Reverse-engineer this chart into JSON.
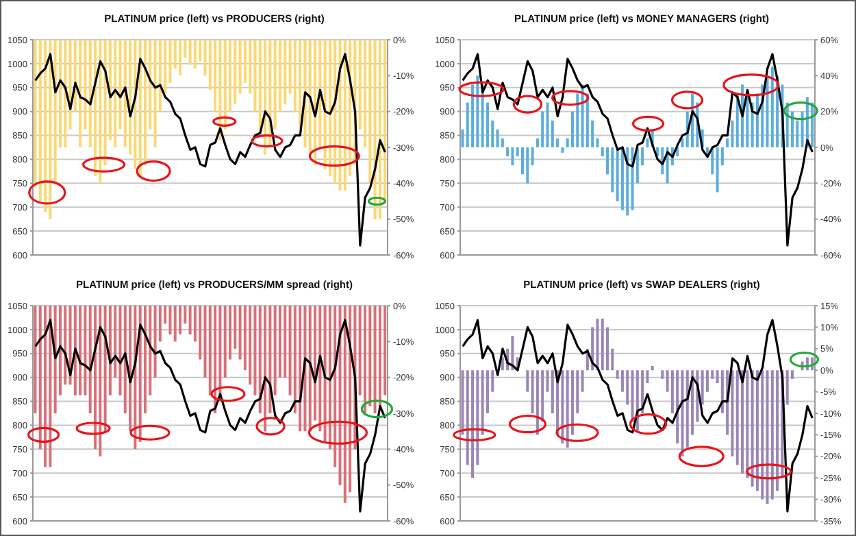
{
  "chart_data": [
    {
      "type": "bar",
      "title": "PLATINUM price (left) vs PRODUCERS (right)",
      "grid": "y",
      "categories": [
        null,
        null,
        null,
        null,
        null,
        null,
        null,
        null,
        null,
        null,
        null,
        null,
        null,
        null,
        null,
        null,
        null,
        null,
        null,
        null,
        null,
        null,
        null,
        null,
        null,
        null,
        null,
        null,
        null,
        null,
        null,
        null,
        null,
        null,
        null,
        null,
        null,
        null,
        null,
        null,
        null,
        null,
        null,
        null,
        null,
        null,
        null,
        null,
        null,
        null,
        null,
        null,
        null,
        null,
        null,
        null,
        null,
        null,
        null,
        null,
        null,
        null,
        null,
        null,
        null,
        null,
        null,
        null,
        null,
        null,
        null
      ],
      "ylim": [
        600,
        1050
      ],
      "yticks": [
        600,
        650,
        700,
        750,
        800,
        850,
        900,
        950,
        1000,
        1050
      ],
      "y2lim": [
        -60,
        0
      ],
      "y2ticks": [
        {
          "value": -60,
          "label": "-60%"
        },
        {
          "value": -50,
          "label": "-50%"
        },
        {
          "value": -40,
          "label": "-40%"
        },
        {
          "value": -30,
          "label": "-30%"
        },
        {
          "value": -20,
          "label": "-20%"
        },
        {
          "value": -10,
          "label": "-10%"
        },
        {
          "value": 0,
          "label": "0%"
        }
      ],
      "series": [
        {
          "axis": "y2",
          "color": "#fad874",
          "values": [
            -40,
            -45,
            -48,
            -50,
            -40,
            -30,
            -30,
            -25,
            -20,
            -30,
            -25,
            -30,
            -38,
            -40,
            -35,
            -28,
            -30,
            -25,
            -30,
            -32,
            -36,
            -38,
            -35,
            -25,
            -30,
            -20,
            -15,
            -12,
            -8,
            -10,
            -5,
            -7,
            -8,
            -6,
            -10,
            -14,
            -20,
            -28,
            -25,
            -20,
            -18,
            -15,
            -12,
            -15,
            -20,
            -25,
            -32,
            -30,
            -25,
            -20,
            -18,
            -15,
            -20,
            -25,
            -30,
            -32,
            -35,
            -30,
            -36,
            -38,
            -40,
            -42,
            -42,
            -38,
            -35,
            -25,
            -30,
            -40,
            -50,
            -50,
            -45
          ]
        },
        {
          "type": "line",
          "color": "#000000",
          "values": [
            965,
            980,
            990,
            1020,
            940,
            965,
            950,
            905,
            960,
            930,
            925,
            915,
            960,
            1005,
            985,
            930,
            945,
            930,
            950,
            890,
            930,
            1010,
            990,
            965,
            950,
            955,
            930,
            920,
            895,
            885,
            850,
            820,
            825,
            790,
            785,
            830,
            835,
            865,
            830,
            800,
            790,
            815,
            805,
            830,
            850,
            855,
            900,
            885,
            820,
            805,
            825,
            830,
            850,
            850,
            940,
            930,
            890,
            945,
            900,
            895,
            920,
            990,
            1020,
            965,
            900,
            620,
            720,
            740,
            780,
            840,
            815
          ]
        }
      ]
    },
    {
      "type": "bar",
      "title": "PLATINUM price (left) vs MONEY MANAGERS (right)",
      "grid": "y",
      "categories": [
        null,
        null,
        null,
        null,
        null,
        null,
        null,
        null,
        null,
        null,
        null,
        null,
        null,
        null,
        null,
        null,
        null,
        null,
        null,
        null,
        null,
        null,
        null,
        null,
        null,
        null,
        null,
        null,
        null,
        null,
        null,
        null,
        null,
        null,
        null,
        null,
        null,
        null,
        null,
        null,
        null,
        null,
        null,
        null,
        null,
        null,
        null,
        null,
        null,
        null,
        null,
        null,
        null,
        null,
        null,
        null,
        null,
        null,
        null,
        null,
        null,
        null,
        null,
        null,
        null,
        null,
        null,
        null,
        null,
        null,
        null
      ],
      "ylim": [
        600,
        1050
      ],
      "yticks": [
        600,
        650,
        700,
        750,
        800,
        850,
        900,
        950,
        1000,
        1050
      ],
      "y2lim": [
        -60,
        60
      ],
      "y2ticks": [
        {
          "value": -60,
          "label": "-60%"
        },
        {
          "value": -40,
          "label": "-40%"
        },
        {
          "value": -20,
          "label": "-20%"
        },
        {
          "value": 0,
          "label": "0%"
        },
        {
          "value": 20,
          "label": "20%"
        },
        {
          "value": 40,
          "label": "40%"
        },
        {
          "value": 60,
          "label": "60%"
        }
      ],
      "series": [
        {
          "axis": "y2",
          "color": "#5badde",
          "values": [
            10,
            25,
            35,
            40,
            35,
            25,
            15,
            10,
            5,
            -5,
            -10,
            -5,
            -15,
            -20,
            -10,
            5,
            20,
            25,
            15,
            5,
            -3,
            5,
            20,
            30,
            35,
            30,
            15,
            5,
            -5,
            -15,
            -25,
            -30,
            -35,
            -38,
            -35,
            -20,
            -10,
            5,
            10,
            -5,
            -15,
            -20,
            -10,
            -5,
            5,
            20,
            30,
            25,
            10,
            -5,
            -15,
            -25,
            -10,
            5,
            15,
            30,
            35,
            30,
            25,
            30,
            35,
            40,
            45,
            40,
            35,
            25,
            20,
            15,
            20,
            28,
            25
          ]
        },
        {
          "type": "line",
          "color": "#000000",
          "values": [
            965,
            980,
            990,
            1020,
            940,
            965,
            950,
            905,
            960,
            930,
            925,
            915,
            960,
            1005,
            985,
            930,
            945,
            930,
            950,
            890,
            930,
            1010,
            990,
            965,
            950,
            955,
            930,
            920,
            895,
            885,
            850,
            820,
            825,
            790,
            785,
            830,
            835,
            865,
            830,
            800,
            790,
            815,
            805,
            830,
            850,
            855,
            900,
            885,
            820,
            805,
            825,
            830,
            850,
            850,
            940,
            930,
            890,
            945,
            900,
            895,
            920,
            990,
            1020,
            965,
            900,
            620,
            720,
            740,
            780,
            840,
            815
          ]
        }
      ]
    },
    {
      "type": "bar",
      "title": "PLATINUM price (left) vs PRODUCERS/MM spread (right)",
      "grid": "y",
      "categories": [
        null,
        null,
        null,
        null,
        null,
        null,
        null,
        null,
        null,
        null,
        null,
        null,
        null,
        null,
        null,
        null,
        null,
        null,
        null,
        null,
        null,
        null,
        null,
        null,
        null,
        null,
        null,
        null,
        null,
        null,
        null,
        null,
        null,
        null,
        null,
        null,
        null,
        null,
        null,
        null,
        null,
        null,
        null,
        null,
        null,
        null,
        null,
        null,
        null,
        null,
        null,
        null,
        null,
        null,
        null,
        null,
        null,
        null,
        null,
        null,
        null,
        null,
        null,
        null,
        null,
        null,
        null,
        null,
        null,
        null,
        null
      ],
      "ylim": [
        600,
        1050
      ],
      "yticks": [
        600,
        650,
        700,
        750,
        800,
        850,
        900,
        950,
        1000,
        1050
      ],
      "y2lim": [
        -60,
        0
      ],
      "y2ticks": [
        {
          "value": -60,
          "label": "-60%"
        },
        {
          "value": -50,
          "label": "-50%"
        },
        {
          "value": -40,
          "label": "-40%"
        },
        {
          "value": -30,
          "label": "-30%"
        },
        {
          "value": -20,
          "label": "-20%"
        },
        {
          "value": -10,
          "label": "-10%"
        },
        {
          "value": 0,
          "label": "0%"
        }
      ],
      "series": [
        {
          "axis": "y2",
          "color": "#d87078",
          "values": [
            -30,
            -40,
            -45,
            -45,
            -30,
            -25,
            -22,
            -22,
            -25,
            -25,
            -25,
            -30,
            -40,
            -42,
            -35,
            -25,
            -20,
            -25,
            -30,
            -35,
            -40,
            -38,
            -30,
            -25,
            -20,
            -10,
            -5,
            -8,
            -10,
            -8,
            -5,
            -8,
            -10,
            -15,
            -20,
            -25,
            -30,
            -25,
            -20,
            -15,
            -12,
            -15,
            -18,
            -22,
            -25,
            -30,
            -35,
            -30,
            -25,
            -20,
            -20,
            -25,
            -30,
            -35,
            -35,
            -35,
            -32,
            -35,
            -38,
            -40,
            -45,
            -50,
            -55,
            -52,
            -40,
            -25,
            -30,
            -28,
            -30,
            -28,
            -25
          ]
        },
        {
          "type": "line",
          "color": "#000000",
          "values": [
            965,
            980,
            990,
            1020,
            940,
            965,
            950,
            905,
            960,
            930,
            925,
            915,
            960,
            1005,
            985,
            930,
            945,
            930,
            950,
            890,
            930,
            1010,
            990,
            965,
            950,
            955,
            930,
            920,
            895,
            885,
            850,
            820,
            825,
            790,
            785,
            830,
            835,
            865,
            830,
            800,
            790,
            815,
            805,
            830,
            850,
            855,
            900,
            885,
            820,
            805,
            825,
            830,
            850,
            850,
            940,
            930,
            890,
            945,
            900,
            895,
            920,
            990,
            1020,
            965,
            900,
            620,
            720,
            740,
            780,
            840,
            815
          ]
        }
      ]
    },
    {
      "type": "bar",
      "title": "PLATINUM price (left) vs SWAP DEALERS (right)",
      "grid": "y",
      "categories": [
        null,
        null,
        null,
        null,
        null,
        null,
        null,
        null,
        null,
        null,
        null,
        null,
        null,
        null,
        null,
        null,
        null,
        null,
        null,
        null,
        null,
        null,
        null,
        null,
        null,
        null,
        null,
        null,
        null,
        null,
        null,
        null,
        null,
        null,
        null,
        null,
        null,
        null,
        null,
        null,
        null,
        null,
        null,
        null,
        null,
        null,
        null,
        null,
        null,
        null,
        null,
        null,
        null,
        null,
        null,
        null,
        null,
        null,
        null,
        null,
        null,
        null,
        null,
        null,
        null,
        null,
        null,
        null,
        null,
        null,
        null
      ],
      "ylim": [
        600,
        1050
      ],
      "yticks": [
        600,
        650,
        700,
        750,
        800,
        850,
        900,
        950,
        1000,
        1050
      ],
      "y2lim": [
        -35,
        15
      ],
      "y2ticks": [
        {
          "value": -35,
          "label": "-35%"
        },
        {
          "value": -30,
          "label": "-30%"
        },
        {
          "value": -25,
          "label": "-25%"
        },
        {
          "value": -20,
          "label": "-20%"
        },
        {
          "value": -15,
          "label": "-15%"
        },
        {
          "value": -10,
          "label": "-10%"
        },
        {
          "value": -5,
          "label": "-5%"
        },
        {
          "value": 0,
          "label": "0%"
        },
        {
          "value": 5,
          "label": "5%"
        },
        {
          "value": 10,
          "label": "10%"
        },
        {
          "value": 15,
          "label": "15%"
        }
      ],
      "series": [
        {
          "axis": "y2",
          "color": "#9a86b6",
          "values": [
            -15,
            -22,
            -25,
            -22,
            -15,
            -10,
            -5,
            0,
            3,
            5,
            8,
            3,
            0,
            -5,
            -10,
            -15,
            -12,
            -5,
            -10,
            -15,
            -17,
            -18,
            -15,
            -10,
            -5,
            5,
            10,
            12,
            12,
            10,
            5,
            -2,
            -5,
            -8,
            -12,
            -14,
            -10,
            -3,
            1,
            0,
            -2,
            -5,
            -10,
            -17,
            -20,
            -18,
            -15,
            -12,
            -8,
            -5,
            -2,
            -3,
            -10,
            -15,
            -20,
            -22,
            -24,
            -25,
            -27,
            -28,
            -30,
            -31,
            -30,
            -28,
            -25,
            -8,
            -2,
            0,
            2,
            3,
            3
          ]
        },
        {
          "type": "line",
          "color": "#000000",
          "values": [
            965,
            980,
            990,
            1020,
            940,
            965,
            950,
            905,
            960,
            930,
            925,
            915,
            960,
            1005,
            985,
            930,
            945,
            930,
            950,
            890,
            930,
            1010,
            990,
            965,
            950,
            955,
            930,
            920,
            895,
            885,
            850,
            820,
            825,
            790,
            785,
            830,
            835,
            865,
            830,
            800,
            790,
            815,
            805,
            830,
            850,
            855,
            900,
            885,
            820,
            805,
            825,
            830,
            850,
            850,
            940,
            930,
            890,
            945,
            900,
            895,
            920,
            990,
            1020,
            965,
            900,
            620,
            720,
            740,
            780,
            840,
            815
          ]
        }
      ]
    }
  ]
}
